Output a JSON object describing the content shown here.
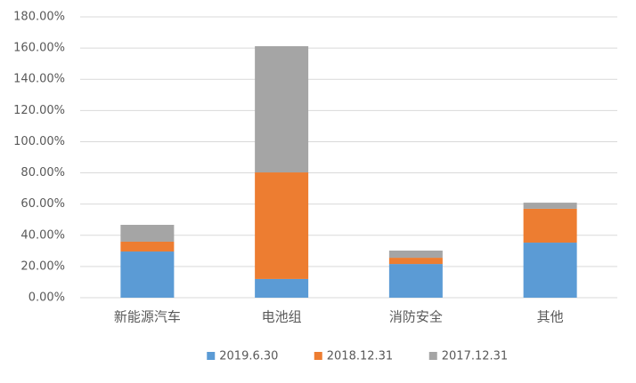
{
  "chart_data": {
    "type": "stacked_bar",
    "categories": [
      "新能源汽车",
      "电池组",
      "消防安全",
      "其他"
    ],
    "series": [
      {
        "name": "2019.6.30",
        "color": "#5b9bd5",
        "values": [
          29.6,
          12.0,
          21.6,
          35.3
        ]
      },
      {
        "name": "2018.12.31",
        "color": "#ed7d31",
        "values": [
          6.3,
          68.3,
          4.0,
          21.7
        ]
      },
      {
        "name": "2017.12.31",
        "color": "#a5a5a5",
        "values": [
          10.8,
          80.9,
          4.6,
          3.9
        ]
      }
    ],
    "ylim": [
      0,
      180
    ],
    "yticks": [
      {
        "value": 0,
        "label": "0.00%"
      },
      {
        "value": 20,
        "label": "20.00%"
      },
      {
        "value": 40,
        "label": "40.00%"
      },
      {
        "value": 60,
        "label": "60.00%"
      },
      {
        "value": 80,
        "label": "80.00%"
      },
      {
        "value": 100,
        "label": "100.00%"
      },
      {
        "value": 120,
        "label": "120.00%"
      },
      {
        "value": 140,
        "label": "140.00%"
      },
      {
        "value": 160,
        "label": "160.00%"
      },
      {
        "value": 180,
        "label": "180.00%"
      }
    ],
    "grid": true,
    "legend": "bottom"
  }
}
